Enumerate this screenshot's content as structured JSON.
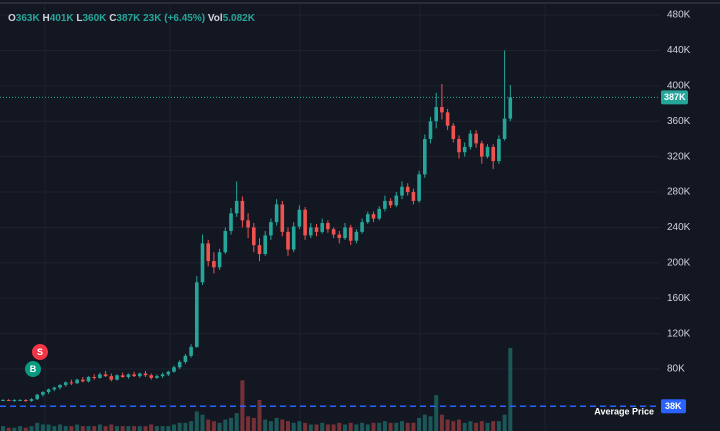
{
  "chart_data": {
    "type": "candlestick",
    "header": {
      "items": [
        {
          "key": "O",
          "value": "363K"
        },
        {
          "key": "H",
          "value": "401K"
        },
        {
          "key": "L",
          "value": "360K"
        },
        {
          "key": "C",
          "value": "387K"
        }
      ],
      "change": "23K (+6.45%)",
      "volume_key": "Vol",
      "volume_value": "5.082K"
    },
    "ylim": [
      10,
      497
    ],
    "yticks": [
      {
        "value": 480,
        "label": "480K"
      },
      {
        "value": 440,
        "label": "440K"
      },
      {
        "value": 400,
        "label": "400K"
      },
      {
        "value": 360,
        "label": "360K"
      },
      {
        "value": 320,
        "label": "320K"
      },
      {
        "value": 280,
        "label": "280K"
      },
      {
        "value": 240,
        "label": "240K"
      },
      {
        "value": 200,
        "label": "200K"
      },
      {
        "value": 160,
        "label": "160K"
      },
      {
        "value": 120,
        "label": "120K"
      },
      {
        "value": 80,
        "label": "80K"
      }
    ],
    "grid": true,
    "up_color": "#26a69a",
    "down_color": "#ef5350",
    "last_price": 387,
    "last_price_label": "387K",
    "average_price": 38,
    "average_price_label": "38K",
    "average_price_text": "Average Price",
    "markers": [
      {
        "label": "S",
        "color": "#f23645"
      },
      {
        "label": "B",
        "color": "#089981"
      }
    ],
    "candles": [
      [
        45,
        46,
        44,
        45
      ],
      [
        45,
        46,
        44,
        44
      ],
      [
        44,
        46,
        43,
        45
      ],
      [
        45,
        46,
        44,
        45
      ],
      [
        45,
        46,
        43,
        44
      ],
      [
        44,
        47,
        43,
        46
      ],
      [
        46,
        52,
        45,
        51
      ],
      [
        51,
        55,
        49,
        54
      ],
      [
        54,
        58,
        52,
        57
      ],
      [
        57,
        60,
        55,
        59
      ],
      [
        59,
        63,
        57,
        62
      ],
      [
        62,
        66,
        60,
        65
      ],
      [
        65,
        68,
        62,
        64
      ],
      [
        64,
        69,
        63,
        68
      ],
      [
        68,
        71,
        65,
        66
      ],
      [
        66,
        72,
        65,
        71
      ],
      [
        71,
        74,
        68,
        70
      ],
      [
        70,
        76,
        69,
        74
      ],
      [
        74,
        78,
        71,
        72
      ],
      [
        72,
        75,
        66,
        68
      ],
      [
        68,
        74,
        67,
        73
      ],
      [
        73,
        76,
        70,
        71
      ],
      [
        71,
        75,
        69,
        74
      ],
      [
        74,
        77,
        71,
        72
      ],
      [
        72,
        76,
        70,
        75
      ],
      [
        75,
        78,
        71,
        73
      ],
      [
        73,
        75,
        68,
        70
      ],
      [
        70,
        74,
        69,
        72
      ],
      [
        72,
        76,
        70,
        74
      ],
      [
        74,
        78,
        72,
        77
      ],
      [
        77,
        84,
        76,
        82
      ],
      [
        82,
        90,
        80,
        88
      ],
      [
        88,
        97,
        86,
        95
      ],
      [
        95,
        108,
        93,
        105
      ],
      [
        105,
        185,
        104,
        178
      ],
      [
        178,
        232,
        175,
        222
      ],
      [
        222,
        226,
        196,
        202
      ],
      [
        202,
        212,
        188,
        195
      ],
      [
        195,
        216,
        192,
        212
      ],
      [
        212,
        240,
        210,
        236
      ],
      [
        236,
        262,
        232,
        256
      ],
      [
        256,
        292,
        252,
        270
      ],
      [
        270,
        275,
        240,
        248
      ],
      [
        248,
        256,
        228,
        240
      ],
      [
        240,
        245,
        212,
        220
      ],
      [
        220,
        228,
        202,
        210
      ],
      [
        210,
        236,
        208,
        231
      ],
      [
        231,
        250,
        226,
        246
      ],
      [
        246,
        272,
        242,
        266
      ],
      [
        266,
        270,
        230,
        235
      ],
      [
        235,
        240,
        208,
        215
      ],
      [
        215,
        246,
        212,
        241
      ],
      [
        241,
        265,
        238,
        260
      ],
      [
        260,
        263,
        226,
        231
      ],
      [
        231,
        245,
        228,
        240
      ],
      [
        240,
        244,
        230,
        235
      ],
      [
        235,
        250,
        233,
        245
      ],
      [
        245,
        248,
        234,
        238
      ],
      [
        238,
        240,
        228,
        232
      ],
      [
        232,
        236,
        222,
        228
      ],
      [
        228,
        245,
        226,
        240
      ],
      [
        240,
        243,
        220,
        225
      ],
      [
        225,
        238,
        222,
        235
      ],
      [
        235,
        250,
        233,
        246
      ],
      [
        246,
        258,
        244,
        255
      ],
      [
        255,
        258,
        246,
        250
      ],
      [
        250,
        264,
        248,
        261
      ],
      [
        261,
        276,
        258,
        270
      ],
      [
        270,
        273,
        262,
        265
      ],
      [
        265,
        280,
        263,
        276
      ],
      [
        276,
        292,
        272,
        286
      ],
      [
        286,
        290,
        276,
        280
      ],
      [
        280,
        284,
        266,
        270
      ],
      [
        270,
        304,
        268,
        300
      ],
      [
        300,
        345,
        296,
        340
      ],
      [
        340,
        365,
        335,
        360
      ],
      [
        360,
        392,
        352,
        376
      ],
      [
        376,
        402,
        362,
        370
      ],
      [
        370,
        374,
        350,
        355
      ],
      [
        355,
        358,
        336,
        340
      ],
      [
        340,
        344,
        318,
        325
      ],
      [
        325,
        336,
        320,
        331
      ],
      [
        331,
        350,
        328,
        346
      ],
      [
        346,
        350,
        330,
        335
      ],
      [
        335,
        338,
        312,
        320
      ],
      [
        320,
        334,
        318,
        331
      ],
      [
        331,
        334,
        306,
        315
      ],
      [
        315,
        344,
        312,
        340
      ],
      [
        340,
        440,
        338,
        363
      ],
      [
        363,
        401,
        360,
        387
      ]
    ],
    "volumes": [
      0.3,
      0.2,
      0.2,
      0.3,
      0.2,
      0.3,
      0.5,
      0.4,
      0.4,
      0.3,
      0.4,
      0.3,
      0.3,
      0.4,
      0.3,
      0.3,
      0.3,
      0.4,
      0.3,
      0.4,
      0.3,
      0.3,
      0.3,
      0.3,
      0.3,
      0.3,
      0.4,
      0.3,
      0.3,
      0.3,
      0.4,
      0.5,
      0.5,
      0.6,
      1.2,
      1.0,
      0.7,
      0.6,
      0.5,
      0.7,
      0.8,
      1.1,
      3.1,
      0.9,
      0.8,
      1.9,
      0.7,
      0.6,
      0.8,
      0.7,
      0.6,
      0.5,
      0.6,
      0.5,
      0.4,
      0.4,
      0.5,
      0.4,
      0.4,
      0.5,
      0.4,
      0.5,
      0.4,
      0.5,
      0.4,
      0.5,
      0.5,
      0.6,
      0.5,
      0.5,
      0.6,
      0.5,
      0.5,
      0.8,
      1.0,
      0.9,
      2.2,
      1.0,
      0.7,
      0.6,
      0.7,
      0.5,
      0.6,
      0.5,
      0.6,
      0.5,
      0.6,
      0.6,
      1.0,
      5.082
    ]
  }
}
